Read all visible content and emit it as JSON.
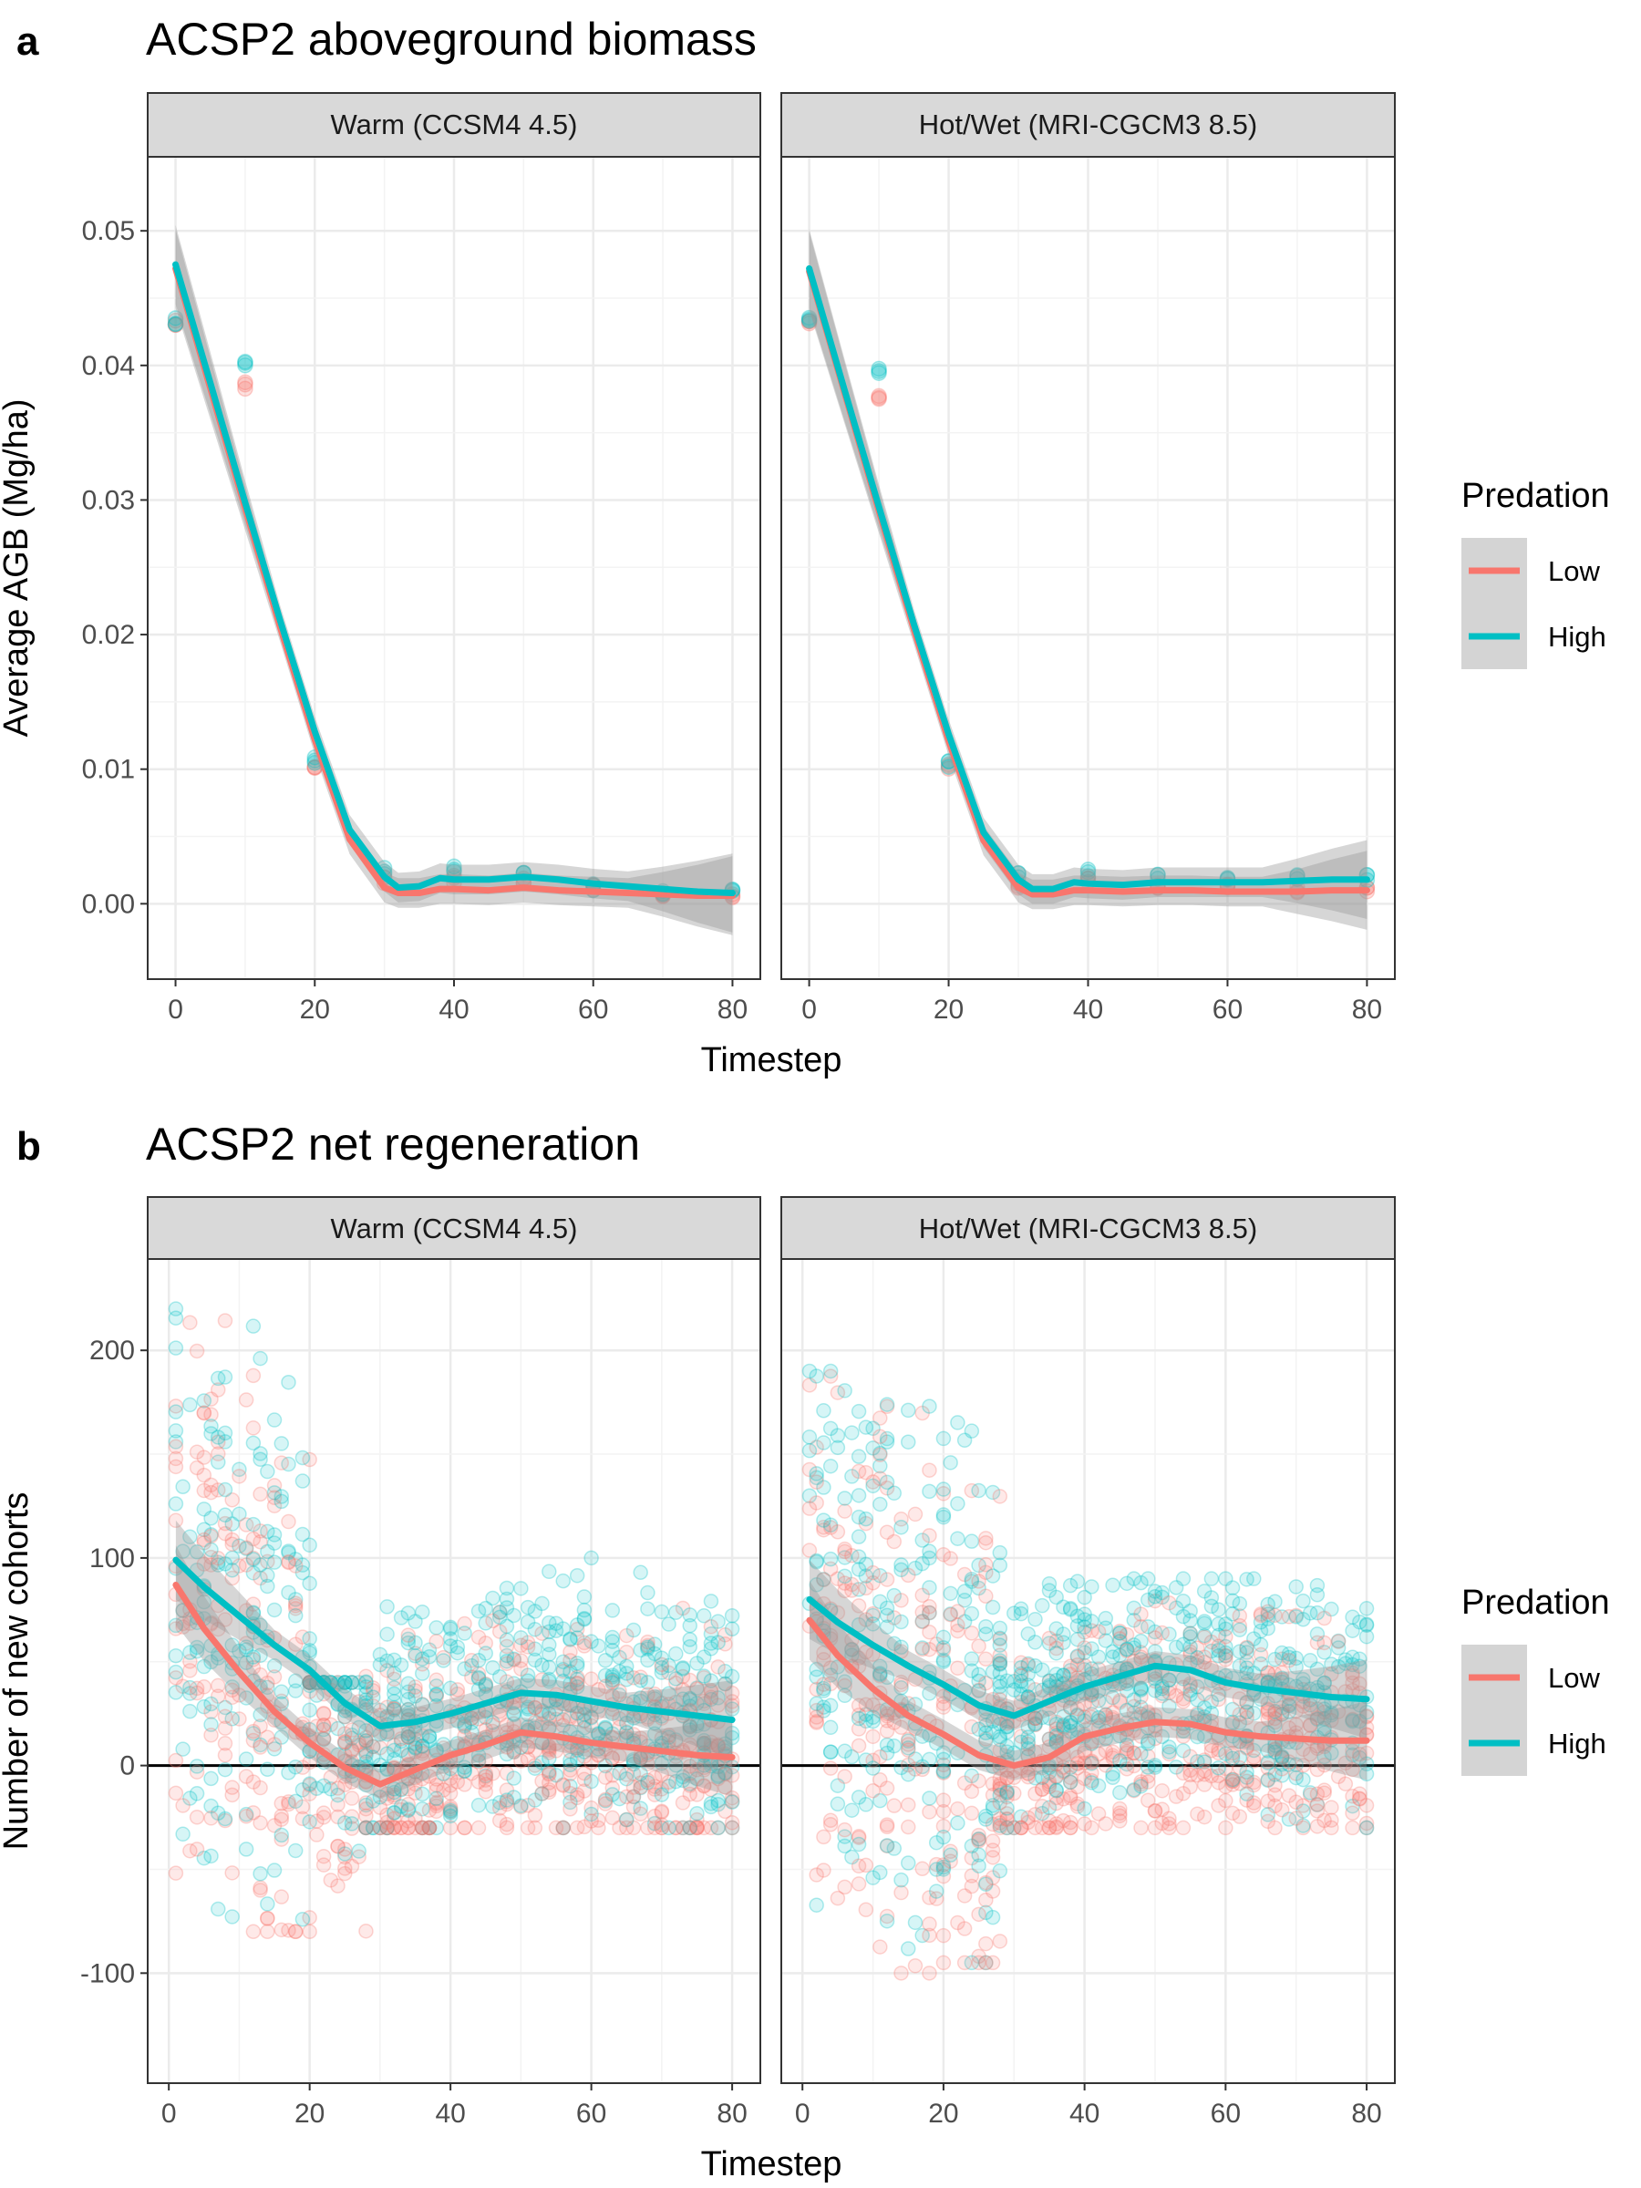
{
  "colors": {
    "low": "#F8766D",
    "high": "#00BFC4",
    "ribbon": "#999999",
    "strip": "#D9D9D9",
    "grid": "#EBEBEB"
  },
  "chart_data": [
    {
      "panel": "a",
      "title": "ACSP2 aboveground biomass",
      "type": "scatter",
      "xlabel": "Timestep",
      "ylabel": "Average AGB (Mg/ha)",
      "xlim": [
        -4,
        84
      ],
      "ylim": [
        -0.0056,
        0.0555
      ],
      "xticks": [
        "0",
        "20",
        "40",
        "60",
        "80"
      ],
      "yticks": [
        "0.00",
        "0.01",
        "0.02",
        "0.03",
        "0.04",
        "0.05"
      ],
      "legend": {
        "title": "Predation",
        "labels": [
          "Low",
          "High"
        ],
        "position": "right"
      },
      "facets": [
        {
          "strip": "Warm (CCSM4 4.5)",
          "points": {
            "x": [
              0,
              10,
              20,
              30,
              40,
              50,
              60,
              70,
              80
            ],
            "low": [
              0.0433,
              0.0385,
              0.0101,
              0.0018,
              0.0018,
              0.0016,
              0.0011,
              0.0006,
              0.0006
            ],
            "high": [
              0.0433,
              0.0403,
              0.0106,
              0.0025,
              0.0025,
              0.0022,
              0.0012,
              0.0008,
              0.0009
            ]
          },
          "smooth": {
            "x": [
              0,
              5,
              10,
              15,
              20,
              25,
              30,
              32,
              35,
              38,
              40,
              45,
              50,
              55,
              60,
              65,
              70,
              75,
              80
            ],
            "low": [
              0.0472,
              0.0383,
              0.0294,
              0.0206,
              0.0122,
              0.0048,
              0.0012,
              0.0008,
              0.0008,
              0.0011,
              0.0011,
              0.001,
              0.0012,
              0.001,
              0.0009,
              0.0008,
              0.0007,
              0.0006,
              0.0006
            ],
            "high": [
              0.0475,
              0.0387,
              0.0298,
              0.0211,
              0.0128,
              0.0055,
              0.002,
              0.0012,
              0.0013,
              0.0019,
              0.0018,
              0.0018,
              0.002,
              0.0018,
              0.0015,
              0.0013,
              0.0011,
              0.0009,
              0.0008
            ]
          }
        },
        {
          "strip": "Hot/Wet (MRI-CGCM3 8.5)",
          "points": {
            "x": [
              0,
              10,
              20,
              30,
              40,
              50,
              60,
              70,
              80
            ],
            "low": [
              0.0433,
              0.0375,
              0.0101,
              0.0014,
              0.0017,
              0.0014,
              0.0012,
              0.001,
              0.001
            ],
            "high": [
              0.0433,
              0.0395,
              0.0104,
              0.0022,
              0.0023,
              0.002,
              0.002,
              0.0019,
              0.002
            ]
          },
          "smooth": {
            "x": [
              0,
              5,
              10,
              15,
              20,
              25,
              30,
              32,
              35,
              38,
              40,
              45,
              50,
              55,
              60,
              65,
              70,
              75,
              80
            ],
            "low": [
              0.047,
              0.0381,
              0.0292,
              0.0204,
              0.0121,
              0.0047,
              0.0012,
              0.0007,
              0.0007,
              0.001,
              0.001,
              0.0009,
              0.001,
              0.001,
              0.0009,
              0.0009,
              0.0009,
              0.001,
              0.001
            ],
            "high": [
              0.0472,
              0.0383,
              0.0295,
              0.0208,
              0.0126,
              0.0053,
              0.0018,
              0.0011,
              0.0011,
              0.0016,
              0.0015,
              0.0014,
              0.0016,
              0.0016,
              0.0016,
              0.0016,
              0.0017,
              0.0018,
              0.0018
            ]
          }
        }
      ]
    },
    {
      "panel": "b",
      "title": "ACSP2 net regeneration",
      "type": "scatter",
      "xlabel": "Timestep",
      "ylabel": "Number of new cohorts",
      "xlim": [
        -3,
        84
      ],
      "ylim": [
        -153,
        244
      ],
      "xticks": [
        "0",
        "20",
        "40",
        "60",
        "80"
      ],
      "yticks": [
        "-100",
        "0",
        "100",
        "200"
      ],
      "zero_line": 0,
      "legend": {
        "title": "Predation",
        "labels": [
          "Low",
          "High"
        ],
        "position": "right"
      },
      "facets": [
        {
          "strip": "Warm (CCSM4 4.5)",
          "smooth": {
            "x": [
              1,
              5,
              10,
              15,
              20,
              25,
              30,
              35,
              40,
              45,
              50,
              55,
              60,
              65,
              70,
              75,
              80
            ],
            "low": [
              87,
              66,
              45,
              26,
              11,
              -1,
              -9,
              -2,
              5,
              10,
              16,
              14,
              11,
              9,
              7,
              5,
              4
            ],
            "high": [
              99,
              86,
              72,
              58,
              46,
              30,
              19,
              21,
              25,
              30,
              35,
              34,
              31,
              28,
              26,
              24,
              22
            ]
          },
          "scatter_bands": [
            {
              "x0": 1,
              "x1": 20,
              "ymin": -80,
              "ymax": 220
            },
            {
              "x0": 20,
              "x1": 28,
              "ymin": -110,
              "ymax": 40
            },
            {
              "x0": 28,
              "x1": 80,
              "ymin": -30,
              "ymax": 100
            }
          ]
        },
        {
          "strip": "Hot/Wet (MRI-CGCM3 8.5)",
          "smooth": {
            "x": [
              1,
              5,
              10,
              15,
              20,
              25,
              30,
              35,
              40,
              45,
              50,
              55,
              60,
              65,
              70,
              75,
              80
            ],
            "low": [
              70,
              53,
              37,
              24,
              15,
              5,
              0,
              4,
              14,
              18,
              21,
              20,
              16,
              14,
              13,
              12,
              12
            ],
            "high": [
              80,
              69,
              58,
              48,
              39,
              29,
              24,
              31,
              38,
              43,
              48,
              46,
              40,
              37,
              35,
              33,
              32
            ]
          },
          "scatter_bands": [
            {
              "x0": 1,
              "x1": 20,
              "ymin": -100,
              "ymax": 190
            },
            {
              "x0": 20,
              "x1": 28,
              "ymin": -95,
              "ymax": 220
            },
            {
              "x0": 28,
              "x1": 80,
              "ymin": -30,
              "ymax": 90
            }
          ]
        }
      ]
    }
  ]
}
